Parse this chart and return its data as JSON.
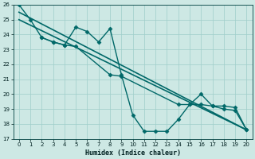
{
  "xlabel": "Humidex (Indice chaleur)",
  "xlim": [
    -0.5,
    20.5
  ],
  "ylim": [
    17,
    26
  ],
  "xticks": [
    0,
    1,
    2,
    3,
    4,
    5,
    6,
    7,
    8,
    9,
    10,
    11,
    12,
    13,
    14,
    15,
    16,
    17,
    18,
    19,
    20
  ],
  "yticks": [
    17,
    18,
    19,
    20,
    21,
    22,
    23,
    24,
    25,
    26
  ],
  "bg_color": "#cde8e4",
  "line_color": "#006868",
  "grid_color": "#9ececa",
  "series": [
    {
      "x": [
        0,
        1,
        2,
        3,
        4,
        5,
        6,
        7,
        8,
        9,
        10,
        11,
        12,
        13,
        14,
        15,
        16,
        17,
        18,
        19,
        20
      ],
      "y": [
        26,
        25,
        23.8,
        23.5,
        23.3,
        24.5,
        24.2,
        23.5,
        24.4,
        21.3,
        18.6,
        17.5,
        17.5,
        17.5,
        18.3,
        19.3,
        20.0,
        19.2,
        19.2,
        19.1,
        17.6
      ],
      "marker": "D",
      "markersize": 2.5,
      "linewidth": 1.0
    },
    {
      "x": [
        2,
        3,
        4,
        5,
        8,
        9,
        14,
        15,
        16,
        17,
        18,
        19,
        20
      ],
      "y": [
        23.8,
        23.5,
        23.3,
        23.2,
        21.3,
        21.2,
        19.3,
        19.3,
        19.3,
        19.2,
        19.0,
        18.9,
        17.6
      ],
      "marker": "D",
      "markersize": 2.5,
      "linewidth": 1.0
    },
    {
      "x": [
        0,
        20
      ],
      "y": [
        25.5,
        17.6
      ],
      "marker": null,
      "markersize": 0,
      "linewidth": 1.2
    },
    {
      "x": [
        0,
        20
      ],
      "y": [
        25.0,
        17.6
      ],
      "marker": null,
      "markersize": 0,
      "linewidth": 1.2
    }
  ]
}
